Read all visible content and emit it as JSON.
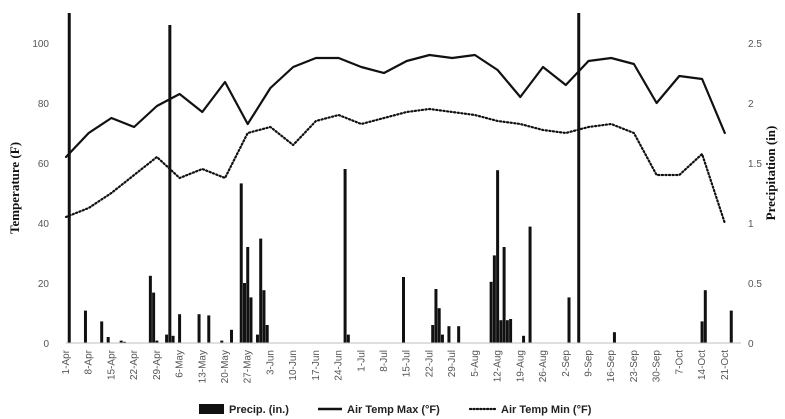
{
  "chart_data": {
    "type": "line",
    "ylabel": "Temperature (F)",
    "y2label": "Precipitation (in)",
    "ylim": [
      0,
      110
    ],
    "y2lim": [
      0,
      2.75
    ],
    "yticks": [
      "0",
      "20",
      "40",
      "60",
      "80",
      "100"
    ],
    "y2ticks": [
      "0",
      "0.5",
      "1",
      "1.5",
      "2",
      "2.5"
    ],
    "y2tick_values": [
      0,
      0.5,
      1,
      1.5,
      2,
      2.5
    ],
    "ytick_values": [
      0,
      20,
      40,
      60,
      80,
      100
    ],
    "xticks": [
      "1-Apr",
      "8-Apr",
      "15-Apr",
      "22-Apr",
      "29-Apr",
      "6-May",
      "13-May",
      "20-May",
      "27-May",
      "3-Jun",
      "10-Jun",
      "17-Jun",
      "24-Jun",
      "1-Jul",
      "8-Jul",
      "15-Jul",
      "22-Jul",
      "29-Jul",
      "5-Aug",
      "12-Aug",
      "19-Aug",
      "26-Aug",
      "2-Sep",
      "9-Sep",
      "16-Sep",
      "23-Sep",
      "30-Sep",
      "7-Oct",
      "14-Oct",
      "21-Oct"
    ],
    "xrange_days": [
      0,
      208
    ],
    "grid": false,
    "legend_position": "bottom",
    "series": [
      {
        "name": "Air Temp Max (°F)",
        "style": "solid",
        "color": "#111111",
        "day_step": 7,
        "values": [
          62,
          70,
          75,
          72,
          79,
          83,
          77,
          87,
          73,
          85,
          92,
          95,
          95,
          92,
          90,
          94,
          96,
          95,
          96,
          91,
          82,
          92,
          86,
          94,
          95,
          93,
          80,
          89,
          88,
          70
        ]
      },
      {
        "name": "Air Temp Min (°F)",
        "style": "dotted",
        "color": "#111111",
        "day_step": 7,
        "values": [
          42,
          45,
          50,
          56,
          62,
          55,
          58,
          55,
          70,
          72,
          66,
          74,
          76,
          73,
          75,
          77,
          78,
          77,
          76,
          74,
          73,
          71,
          70,
          72,
          73,
          70,
          56,
          56,
          63,
          40
        ]
      },
      {
        "name": "Precip. (in.)",
        "type": "bar",
        "color": "#111111",
        "days": [
          1,
          6,
          11,
          13,
          17,
          18,
          26,
          27,
          28,
          31,
          32,
          33,
          35,
          41,
          44,
          48,
          51,
          54,
          55,
          56,
          57,
          59,
          60,
          61,
          62,
          86,
          87,
          104,
          113,
          114,
          115,
          116,
          118,
          121,
          131,
          132,
          133,
          134,
          135,
          136,
          137,
          141,
          143,
          155,
          158,
          169,
          196,
          197,
          205
        ],
        "values": [
          2.75,
          0.27,
          0.18,
          0.05,
          0.02,
          0.01,
          0.56,
          0.42,
          0.02,
          0.07,
          2.65,
          0.06,
          0.24,
          0.24,
          0.23,
          0.02,
          0.11,
          1.33,
          0.5,
          0.8,
          0.38,
          0.07,
          0.87,
          0.44,
          0.15,
          1.45,
          0.07,
          0.55,
          0.15,
          0.45,
          0.29,
          0.07,
          0.14,
          0.14,
          0.51,
          0.73,
          1.44,
          0.19,
          0.8,
          0.19,
          0.2,
          0.06,
          0.97,
          0.38,
          2.75,
          0.09,
          0.18,
          0.44,
          0.27
        ]
      }
    ]
  }
}
